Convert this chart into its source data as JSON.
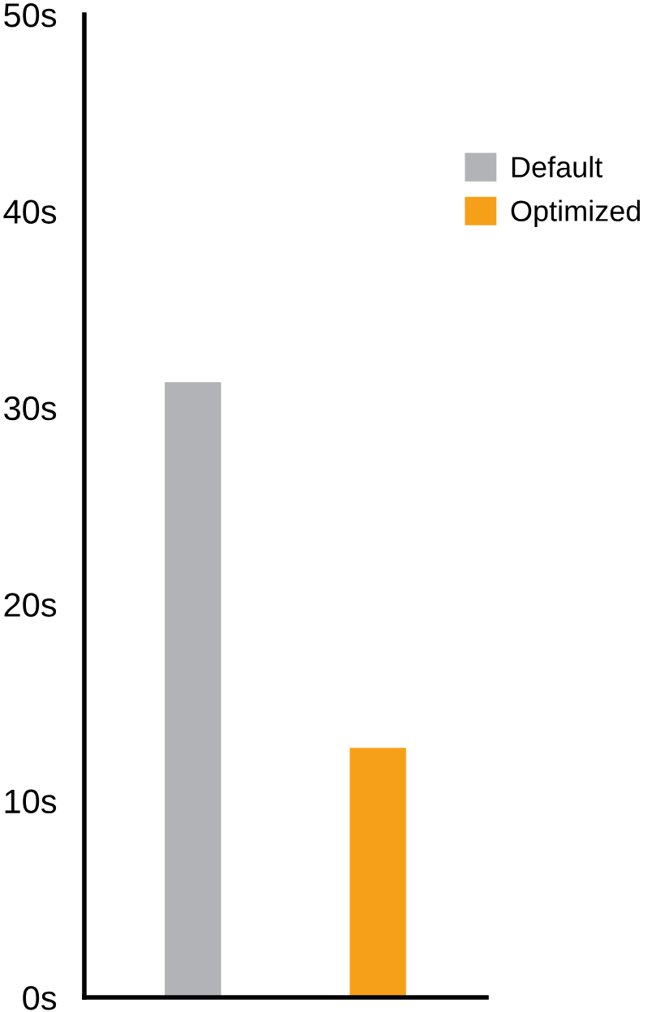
{
  "chart_data": {
    "type": "bar",
    "categories": [
      null
    ],
    "series": [
      {
        "name": "Default",
        "color": "#b1b3b6",
        "values": [
          31.3
        ]
      },
      {
        "name": "Optimized",
        "color": "#f6a01a",
        "values": [
          12.7
        ]
      }
    ],
    "ylim": [
      0,
      50
    ],
    "yticks": [
      {
        "value": 0,
        "label": "0s"
      },
      {
        "value": 10,
        "label": "10s"
      },
      {
        "value": 20,
        "label": "20s"
      },
      {
        "value": 30,
        "label": "30s"
      },
      {
        "value": 40,
        "label": "40s"
      },
      {
        "value": 50,
        "label": "50s"
      }
    ],
    "legend": "top right",
    "grid": false
  }
}
